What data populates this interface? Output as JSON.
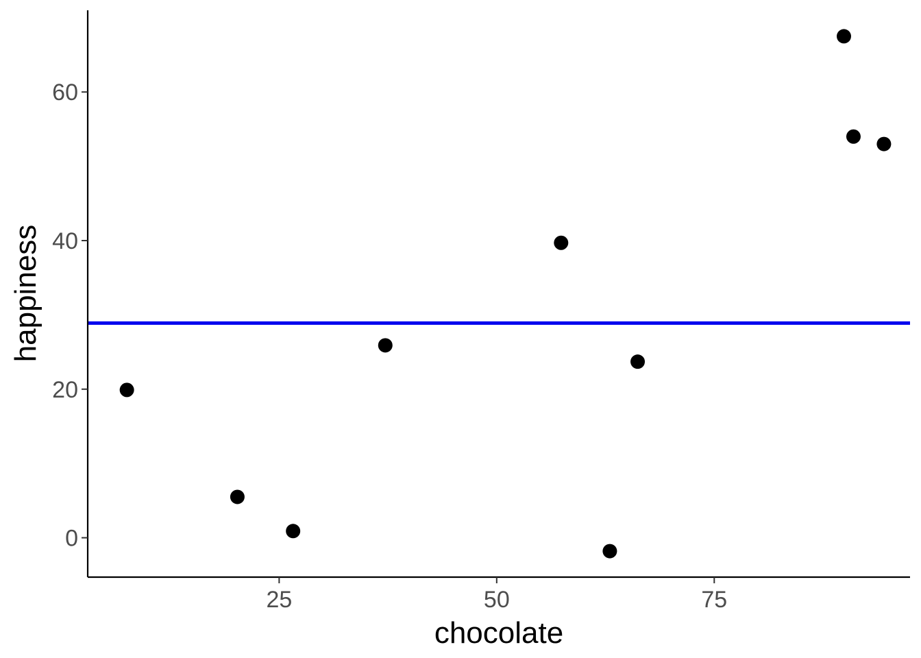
{
  "chart_data": {
    "type": "scatter",
    "title": "",
    "xlabel": "chocolate",
    "ylabel": "happiness",
    "xlim": [
      3.0,
      97.5
    ],
    "ylim": [
      -5.3,
      71.0
    ],
    "x_ticks": [
      25,
      50,
      75
    ],
    "y_ticks": [
      0,
      20,
      40,
      60
    ],
    "grid": false,
    "points": [
      {
        "x": 7.5,
        "y": 19.9
      },
      {
        "x": 20.2,
        "y": 5.5
      },
      {
        "x": 26.6,
        "y": 0.9
      },
      {
        "x": 37.2,
        "y": 25.9
      },
      {
        "x": 57.4,
        "y": 39.7
      },
      {
        "x": 63.0,
        "y": -1.8
      },
      {
        "x": 66.2,
        "y": 23.7
      },
      {
        "x": 89.9,
        "y": 67.5
      },
      {
        "x": 91.0,
        "y": 54.0
      },
      {
        "x": 94.5,
        "y": 53.0
      }
    ],
    "hline": {
      "y": 28.9,
      "color": "#0000ee"
    },
    "point_color": "#000000"
  }
}
